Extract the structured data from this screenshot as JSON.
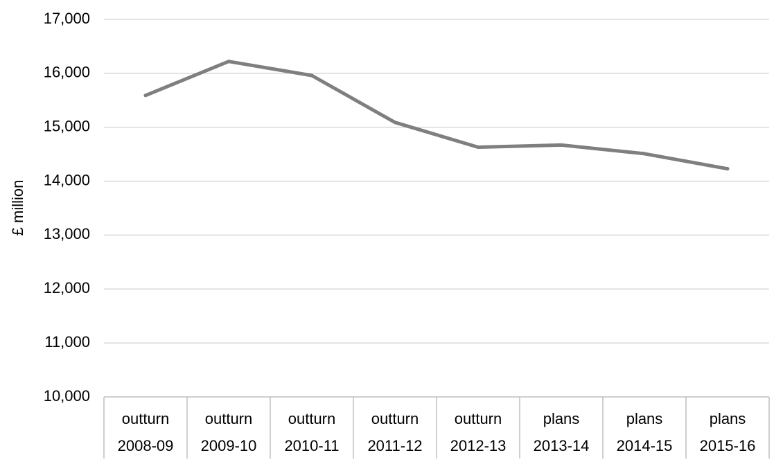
{
  "chart_data": {
    "type": "line",
    "title": "",
    "xlabel": "",
    "ylabel": "£ million",
    "ylim": [
      10000,
      17000
    ],
    "yticks": [
      "10,000",
      "11,000",
      "12,000",
      "13,000",
      "14,000",
      "15,000",
      "16,000",
      "17,000"
    ],
    "grid": true,
    "categories": [
      {
        "top": "outturn",
        "bottom": "2008-09"
      },
      {
        "top": "outturn",
        "bottom": "2009-10"
      },
      {
        "top": "outturn",
        "bottom": "2010-11"
      },
      {
        "top": "outturn",
        "bottom": "2011-12"
      },
      {
        "top": "outturn",
        "bottom": "2012-13"
      },
      {
        "top": "plans",
        "bottom": "2013-14"
      },
      {
        "top": "plans",
        "bottom": "2014-15"
      },
      {
        "top": "plans",
        "bottom": "2015-16"
      }
    ],
    "series": [
      {
        "color": "#7f7f7f",
        "values": [
          15590,
          16220,
          15960,
          15090,
          14630,
          14670,
          14510,
          14230
        ]
      }
    ]
  }
}
